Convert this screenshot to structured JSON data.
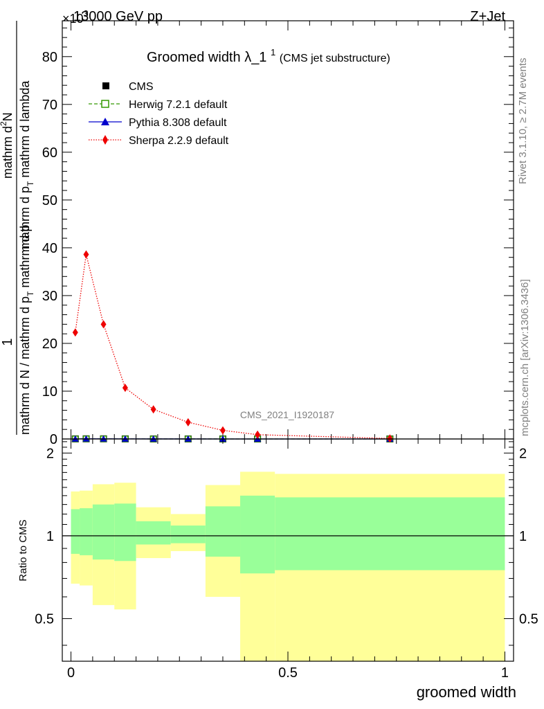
{
  "header": {
    "collision": "13000 GeV pp",
    "process": "Z+Jet",
    "multiplier": "×10",
    "multiplier_exp": "3"
  },
  "side_labels": {
    "rivet": "Rivet 3.1.10, ≥ 2.7M events",
    "mcplots": "mcplots.cern.ch [arXiv:1306.3436]"
  },
  "watermark": "CMS_2021_I1920187",
  "colors": {
    "cms": "#000000",
    "herwig": "#339900",
    "pythia": "#0000cc",
    "sherpa": "#ee0000",
    "band_inner": "#99ff99",
    "band_outer": "#ffff99"
  },
  "chart_data": [
    {
      "type": "line",
      "title": "Groomed width",
      "title_symbol": "λ_1",
      "title_sup": "1",
      "title_note": "(CMS jet substructure)",
      "ylabel_num": "1",
      "ylabel_den": "mathrm d N / mathrm d p",
      "ylabel_den_sub": "T",
      "ylabel_den_tail": " mathrm d p",
      "ylabel_num_full": "mathrm d",
      "ylabel_num_sup": "2",
      "ylabel_num_tail": "N",
      "ylabel_den2": "mathrm d p",
      "ylabel_den2_sub": "T",
      "ylabel_den2_tail": " mathrm d lambda",
      "xlim": [
        -0.02,
        1.02
      ],
      "ylim": [
        0,
        87.5
      ],
      "yticks": [
        0,
        10,
        20,
        30,
        40,
        50,
        60,
        70,
        80
      ],
      "ytick_labels": [
        "0",
        "10",
        "20",
        "30",
        "40",
        "50",
        "60",
        "70",
        "80"
      ],
      "legend_position": "top-left",
      "series": [
        {
          "name": "CMS",
          "marker": "filled-square",
          "x": [
            0.01,
            0.035,
            0.075,
            0.125,
            0.19,
            0.27,
            0.35,
            0.43,
            0.735
          ],
          "y": [
            0.02,
            0.03,
            0.03,
            0.02,
            0.01,
            0.01,
            0.005,
            0.003,
            0.001
          ]
        },
        {
          "name": "Herwig 7.2.1 default",
          "marker": "open-square",
          "line": "dashed",
          "x": [
            0.01,
            0.035,
            0.075,
            0.125,
            0.19,
            0.27,
            0.35,
            0.43,
            0.735
          ],
          "y": [
            0.02,
            0.03,
            0.03,
            0.02,
            0.01,
            0.01,
            0.005,
            0.003,
            0.001
          ]
        },
        {
          "name": "Pythia 8.308 default",
          "marker": "triangle",
          "line": "solid",
          "x": [
            0.01,
            0.035,
            0.075,
            0.125,
            0.19,
            0.27,
            0.35,
            0.43,
            0.735
          ],
          "y": [
            0.02,
            0.03,
            0.03,
            0.02,
            0.01,
            0.01,
            0.005,
            0.003,
            0.001
          ]
        },
        {
          "name": "Sherpa 2.2.9 default",
          "marker": "diamond",
          "line": "dotted",
          "x": [
            0.01,
            0.035,
            0.075,
            0.125,
            0.19,
            0.27,
            0.35,
            0.43,
            0.735
          ],
          "y": [
            22.3,
            38.6,
            24.0,
            10.7,
            6.2,
            3.5,
            1.8,
            0.9,
            0.1
          ]
        }
      ]
    },
    {
      "type": "area",
      "ylabel": "Ratio to CMS",
      "xlabel": "groomed width",
      "xlim": [
        -0.02,
        1.02
      ],
      "ylim": [
        0.35,
        2.25
      ],
      "yticks": [
        0.5,
        1,
        2
      ],
      "ytick_labels": [
        "0.5",
        "1",
        "2"
      ],
      "xticks": [
        0,
        0.5,
        1
      ],
      "xtick_labels": [
        "0",
        "0.5",
        "1"
      ],
      "reference_line": 1,
      "bins": [
        {
          "x0": 0.0,
          "x1": 0.02,
          "inner_lo": 0.86,
          "inner_hi": 1.25,
          "outer_lo": 0.67,
          "outer_hi": 1.45
        },
        {
          "x0": 0.02,
          "x1": 0.05,
          "inner_lo": 0.85,
          "inner_hi": 1.26,
          "outer_lo": 0.66,
          "outer_hi": 1.46
        },
        {
          "x0": 0.05,
          "x1": 0.1,
          "inner_lo": 0.82,
          "inner_hi": 1.3,
          "outer_lo": 0.56,
          "outer_hi": 1.54
        },
        {
          "x0": 0.1,
          "x1": 0.15,
          "inner_lo": 0.81,
          "inner_hi": 1.31,
          "outer_lo": 0.54,
          "outer_hi": 1.56
        },
        {
          "x0": 0.15,
          "x1": 0.23,
          "inner_lo": 0.93,
          "inner_hi": 1.13,
          "outer_lo": 0.83,
          "outer_hi": 1.27
        },
        {
          "x0": 0.23,
          "x1": 0.31,
          "inner_lo": 0.94,
          "inner_hi": 1.09,
          "outer_lo": 0.88,
          "outer_hi": 1.2
        },
        {
          "x0": 0.31,
          "x1": 0.39,
          "inner_lo": 0.84,
          "inner_hi": 1.28,
          "outer_lo": 0.6,
          "outer_hi": 1.53
        },
        {
          "x0": 0.39,
          "x1": 0.47,
          "inner_lo": 0.73,
          "inner_hi": 1.4,
          "outer_lo": 0.35,
          "outer_hi": 1.71
        },
        {
          "x0": 0.47,
          "x1": 1.0,
          "inner_lo": 0.75,
          "inner_hi": 1.38,
          "outer_lo": 0.35,
          "outer_hi": 1.68
        }
      ]
    }
  ]
}
